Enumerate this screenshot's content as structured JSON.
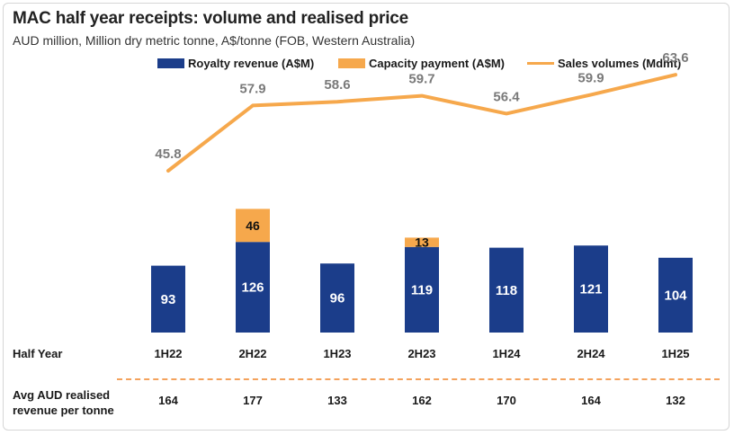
{
  "title": "MAC half year receipts: volume and realised price",
  "subtitle": "AUD million, Million dry metric tonne, A$/tonne (FOB, Western Australia)",
  "legend": {
    "royalty": "Royalty revenue (A$M)",
    "capacity": "Capacity payment (A$M)",
    "sales": "Sales volumes (Mdmt)"
  },
  "colors": {
    "royalty": "#1b3d8a",
    "capacity": "#f6a84c",
    "sales": "#f6a84c",
    "value_label": "#7a7a7a"
  },
  "row_labels": {
    "half_year": "Half Year",
    "avg_price_line1": "Avg AUD realised",
    "avg_price_line2": "revenue per tonne"
  },
  "chart_data": {
    "type": "bar",
    "stacked": true,
    "categories": [
      "1H22",
      "2H22",
      "1H23",
      "2H23",
      "1H24",
      "2H24",
      "1H25"
    ],
    "series": [
      {
        "name": "Royalty revenue (A$M)",
        "kind": "bar",
        "values": [
          93,
          126,
          96,
          119,
          118,
          121,
          104
        ]
      },
      {
        "name": "Capacity payment (A$M)",
        "kind": "bar",
        "values": [
          null,
          46,
          null,
          13,
          null,
          null,
          null
        ]
      },
      {
        "name": "Sales volumes (Mdmt)",
        "kind": "line",
        "values": [
          45.8,
          57.9,
          58.6,
          59.7,
          56.4,
          59.9,
          63.6
        ]
      }
    ],
    "avg_realised_price": [
      164,
      177,
      133,
      162,
      170,
      164,
      132
    ],
    "grid": false,
    "legend_position": "top"
  }
}
